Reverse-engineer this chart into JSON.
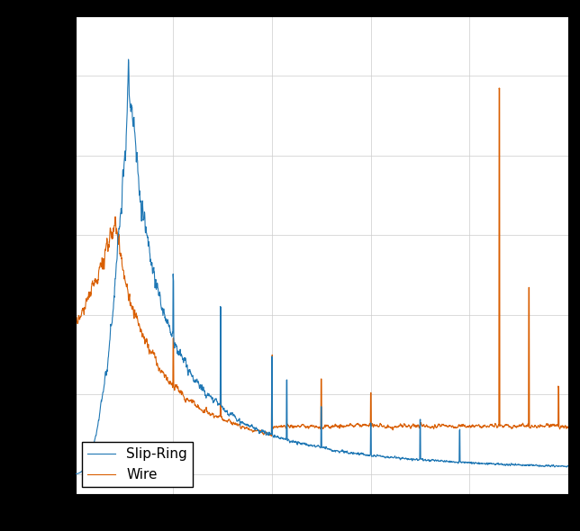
{
  "title": "",
  "xlabel": "",
  "ylabel": "",
  "line1_label": "Slip-Ring",
  "line1_color": "#1f77b4",
  "line2_label": "Wire",
  "line2_color": "#d95f02",
  "legend_loc": "lower left",
  "background_color": "#ffffff",
  "linewidth": 0.8,
  "figsize": [
    6.44,
    5.9
  ],
  "dpi": 100,
  "outer_bg": "#000000",
  "grid_color": "#cccccc",
  "grid_linewidth": 0.5
}
